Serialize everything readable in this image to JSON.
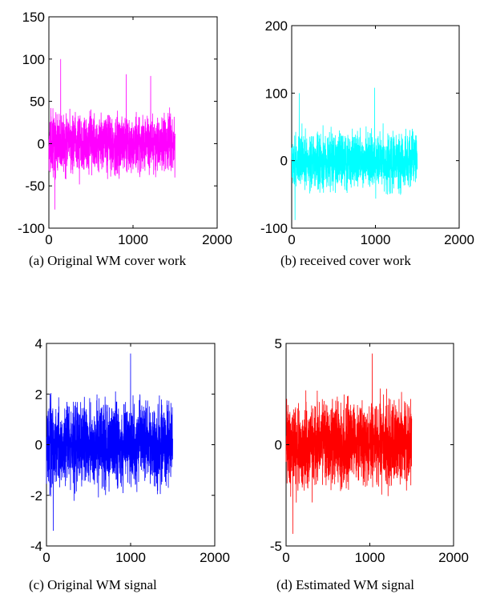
{
  "captions": {
    "a": "(a) Original WM cover work",
    "b": "(b) received cover work",
    "c": "(c) Original WM signal",
    "d": "(d) Estimated WM signal"
  },
  "chart_data": [
    {
      "type": "line",
      "xlim": [
        0,
        2000
      ],
      "ylim": [
        -100,
        150
      ],
      "xticks": [
        "0",
        "1000",
        "2000"
      ],
      "yticks": [
        "-100",
        "-50",
        "0",
        "50",
        "100",
        "150"
      ],
      "color": "#ff00ff",
      "samples": 1500,
      "x_range": [
        0,
        1500
      ],
      "amplitude": 50,
      "extremes": [
        [
          140,
          100
        ],
        [
          70,
          -78
        ],
        [
          920,
          82
        ],
        [
          1210,
          80
        ]
      ]
    },
    {
      "type": "line",
      "xlim": [
        0,
        2000
      ],
      "ylim": [
        -100,
        200
      ],
      "xticks": [
        "0",
        "1000",
        "2000"
      ],
      "yticks": [
        "-100",
        "0",
        "100",
        "200"
      ],
      "color": "#00ffff",
      "samples": 1500,
      "x_range": [
        0,
        1500
      ],
      "amplitude": 60,
      "extremes": [
        [
          90,
          100
        ],
        [
          40,
          -88
        ],
        [
          990,
          108
        ]
      ]
    },
    {
      "type": "line",
      "xlim": [
        0,
        2000
      ],
      "ylim": [
        -4,
        4
      ],
      "xticks": [
        "0",
        "1000",
        "2000"
      ],
      "yticks": [
        "-4",
        "-2",
        "0",
        "2",
        "4"
      ],
      "color": "#0000ff",
      "samples": 1500,
      "x_range": [
        0,
        1500
      ],
      "amplitude": 2.4,
      "extremes": [
        [
          1000,
          3.6
        ],
        [
          80,
          -3.4
        ]
      ]
    },
    {
      "type": "line",
      "xlim": [
        0,
        2000
      ],
      "ylim": [
        -5,
        5
      ],
      "xticks": [
        "0",
        "1000",
        "2000"
      ],
      "yticks": [
        "-5",
        "0",
        "5"
      ],
      "color": "#ff0000",
      "samples": 1500,
      "x_range": [
        0,
        1500
      ],
      "amplitude": 3.1,
      "extremes": [
        [
          1030,
          4.5
        ],
        [
          80,
          -4.4
        ]
      ]
    }
  ]
}
